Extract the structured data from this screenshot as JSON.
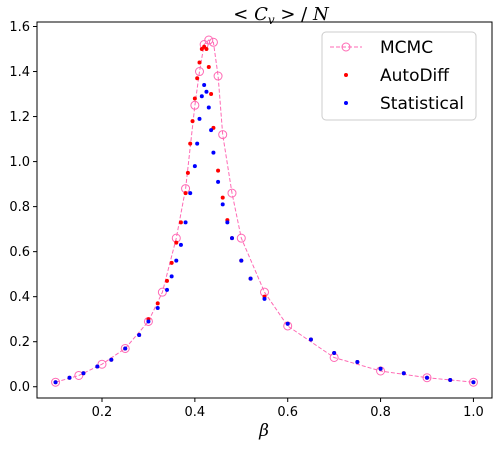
{
  "chart_data": {
    "type": "scatter",
    "title": "< C_v >  / N",
    "xlabel": "β",
    "ylabel": "",
    "xlim": [
      0.06,
      1.04
    ],
    "ylim": [
      -0.05,
      1.62
    ],
    "xticks": [
      0.2,
      0.4,
      0.6,
      0.8,
      1.0
    ],
    "xtick_labels": [
      "0.2",
      "0.4",
      "0.6",
      "0.8",
      "1.0"
    ],
    "yticks": [
      0.0,
      0.2,
      0.4,
      0.6,
      0.8,
      1.0,
      1.2,
      1.4,
      1.6
    ],
    "ytick_labels": [
      "0.0",
      "0.2",
      "0.4",
      "0.6",
      "0.8",
      "1.0",
      "1.2",
      "1.4",
      "1.6"
    ],
    "legend_position": "top-right",
    "grid": false,
    "series": [
      {
        "name": "MCMC",
        "style": "dashed line with open circle markers",
        "color": "#ff69b4",
        "x": [
          0.1,
          0.15,
          0.2,
          0.25,
          0.3,
          0.33,
          0.36,
          0.38,
          0.4,
          0.41,
          0.42,
          0.43,
          0.44,
          0.45,
          0.46,
          0.48,
          0.5,
          0.55,
          0.6,
          0.7,
          0.8,
          0.9,
          1.0
        ],
        "y": [
          0.02,
          0.05,
          0.1,
          0.17,
          0.29,
          0.42,
          0.66,
          0.88,
          1.25,
          1.4,
          1.52,
          1.54,
          1.53,
          1.38,
          1.12,
          0.86,
          0.66,
          0.42,
          0.27,
          0.13,
          0.07,
          0.04,
          0.02
        ]
      },
      {
        "name": "AutoDiff",
        "style": "small dots",
        "color": "#ff0000",
        "x": [
          0.1,
          0.13,
          0.16,
          0.19,
          0.22,
          0.25,
          0.28,
          0.3,
          0.32,
          0.34,
          0.35,
          0.36,
          0.37,
          0.38,
          0.385,
          0.39,
          0.395,
          0.4,
          0.405,
          0.41,
          0.415,
          0.42,
          0.425,
          0.43,
          0.435,
          0.44,
          0.45,
          0.46,
          0.47,
          0.48,
          0.5,
          0.52,
          0.55,
          0.6,
          0.65,
          0.7,
          0.75,
          0.8,
          0.85,
          0.9,
          0.95,
          1.0
        ],
        "y": [
          0.02,
          0.04,
          0.06,
          0.09,
          0.12,
          0.17,
          0.23,
          0.3,
          0.37,
          0.47,
          0.55,
          0.64,
          0.73,
          0.86,
          0.95,
          1.08,
          1.18,
          1.28,
          1.37,
          1.44,
          1.5,
          1.51,
          1.5,
          1.42,
          1.3,
          1.15,
          0.96,
          0.84,
          0.74,
          0.66,
          0.56,
          0.48,
          0.4,
          0.28,
          0.21,
          0.15,
          0.11,
          0.08,
          0.06,
          0.04,
          0.03,
          0.02
        ]
      },
      {
        "name": "Statistical",
        "style": "small dots",
        "color": "#0000ff",
        "x": [
          0.1,
          0.13,
          0.16,
          0.19,
          0.22,
          0.25,
          0.28,
          0.3,
          0.32,
          0.34,
          0.35,
          0.36,
          0.37,
          0.38,
          0.39,
          0.4,
          0.405,
          0.41,
          0.415,
          0.42,
          0.425,
          0.43,
          0.435,
          0.44,
          0.45,
          0.46,
          0.47,
          0.48,
          0.5,
          0.52,
          0.55,
          0.6,
          0.65,
          0.7,
          0.75,
          0.8,
          0.85,
          0.9,
          0.95,
          1.0
        ],
        "y": [
          0.02,
          0.04,
          0.06,
          0.09,
          0.12,
          0.17,
          0.23,
          0.29,
          0.35,
          0.43,
          0.49,
          0.56,
          0.63,
          0.73,
          0.86,
          0.98,
          1.08,
          1.19,
          1.29,
          1.34,
          1.31,
          1.24,
          1.14,
          1.04,
          0.91,
          0.81,
          0.73,
          0.66,
          0.56,
          0.48,
          0.39,
          0.28,
          0.21,
          0.15,
          0.11,
          0.08,
          0.06,
          0.04,
          0.03,
          0.02
        ]
      }
    ]
  }
}
